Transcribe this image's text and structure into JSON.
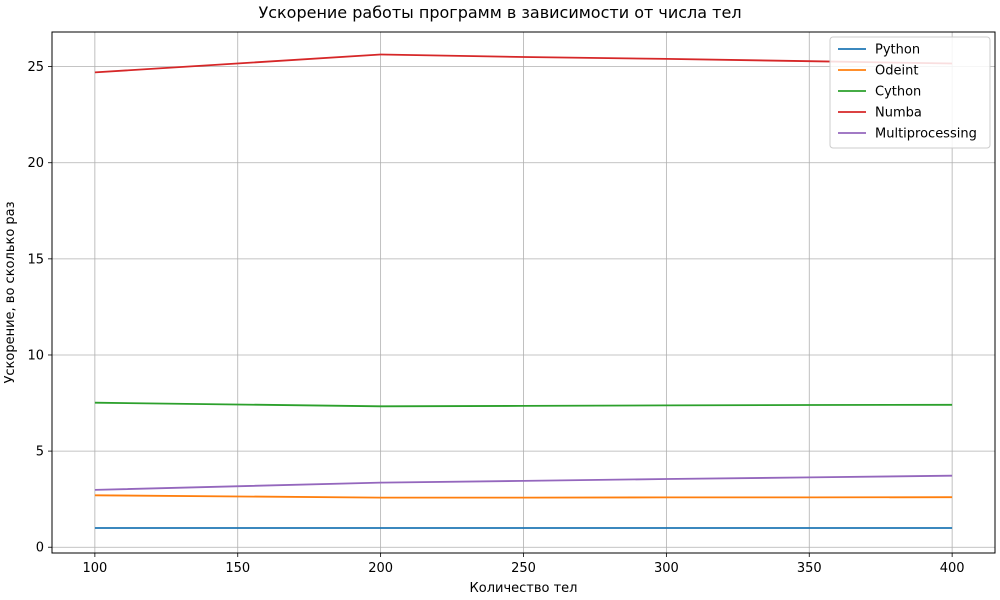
{
  "chart_data": {
    "type": "line",
    "title": "Ускорение работы программ в зависимости от числа тел",
    "xlabel": "Количество тел",
    "ylabel": "Ускорение, во сколько раз",
    "x": [
      100,
      200,
      250,
      300,
      350,
      400
    ],
    "xlim": [
      85,
      415
    ],
    "ylim": [
      -0.3,
      26.8
    ],
    "xticks": [
      100,
      150,
      200,
      250,
      300,
      350,
      400
    ],
    "yticks": [
      0,
      5,
      10,
      15,
      20,
      25
    ],
    "grid": true,
    "legend_position": "top-right",
    "series": [
      {
        "name": "Python",
        "color": "#1f77b4",
        "values": [
          1.0,
          1.0,
          1.0,
          1.0,
          1.0,
          1.0
        ]
      },
      {
        "name": "Odeint",
        "color": "#ff7f0e",
        "values": [
          2.7,
          2.58,
          2.58,
          2.59,
          2.59,
          2.6
        ]
      },
      {
        "name": "Cython",
        "color": "#2ca02c",
        "values": [
          7.52,
          7.33,
          7.35,
          7.38,
          7.4,
          7.41
        ]
      },
      {
        "name": "Numba",
        "color": "#d62728",
        "values": [
          24.7,
          25.63,
          25.5,
          25.4,
          25.28,
          25.16
        ]
      },
      {
        "name": "Multiprocessing",
        "color": "#9467bd",
        "values": [
          2.98,
          3.36,
          3.45,
          3.55,
          3.63,
          3.72
        ]
      }
    ]
  }
}
